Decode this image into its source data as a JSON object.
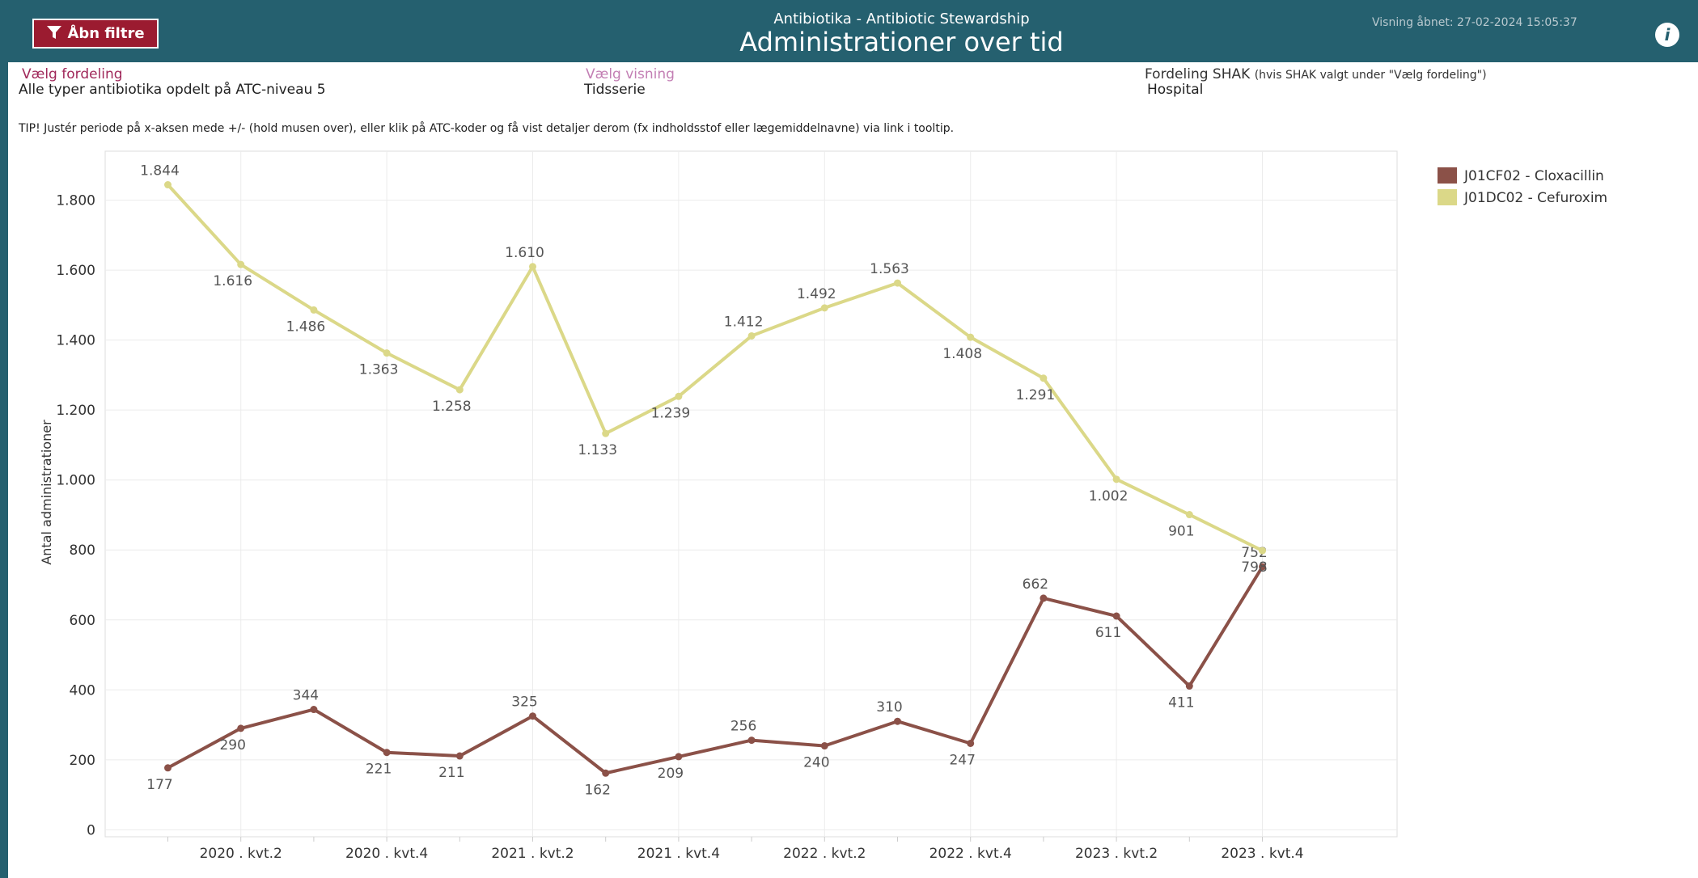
{
  "header": {
    "button": "Åbn filtre",
    "subtitle": "Antibiotika - Antibiotic Stewardship",
    "title": "Administrationer over tid",
    "opened": "Visning åbnet: 27-02-2024 15:05:37"
  },
  "filters": [
    {
      "label": "Vælg fordeling",
      "value": "Alle typer antibiotika opdelt på ATC-niveau 5"
    },
    {
      "label": "Vælg visning",
      "value": "Tidsserie"
    },
    {
      "label": "Fordeling SHAK",
      "note": "(hvis SHAK valgt under \"Vælg fordeling\")",
      "value": "Hospital"
    }
  ],
  "tip": "TIP! Justér periode på x-aksen mede +/- (hold musen over), eller klik på ATC-koder og få vist detaljer derom (fx indholdsstof eller lægemiddelnavne) via link i tooltip.",
  "chart_data": {
    "type": "line",
    "y_label": "Antal administrationer",
    "categories": [
      null,
      "2020 . kvt.2",
      null,
      "2020 . kvt.4",
      null,
      "2021 . kvt.2",
      null,
      "2021 . kvt.4",
      null,
      "2022 . kvt.2",
      null,
      "2022 . kvt.4",
      null,
      "2023 . kvt.2",
      null,
      "2023 . kvt.4"
    ],
    "series": [
      {
        "name": "J01CF02 - Cloxacillin",
        "color": "#8b5148",
        "values": [
          177,
          290,
          344,
          221,
          211,
          325,
          162,
          209,
          256,
          240,
          310,
          247,
          662,
          611,
          411,
          752
        ]
      },
      {
        "name": "J01DC02 - Cefuroxim",
        "color": "#dbd888",
        "values": [
          1844,
          1616,
          1486,
          1363,
          1258,
          1610,
          1133,
          1239,
          1412,
          1492,
          1563,
          1408,
          1291,
          1002,
          901,
          798
        ],
        "value_labels": [
          "1.844",
          "1.616",
          "1.486",
          "1.363",
          "1.258",
          "1.610",
          "1.133",
          "1.239",
          "1.412",
          "1.492",
          "1.563",
          "1.408",
          "1.291",
          "1.002",
          "901",
          "798"
        ]
      }
    ],
    "ylim": [
      -20,
      1940
    ],
    "yticks": [
      0,
      200,
      400,
      600,
      800,
      {
        "value": 1000,
        "label": "1.000"
      },
      {
        "value": 1200,
        "label": "1.200"
      },
      {
        "value": 1400,
        "label": "1.400"
      },
      {
        "value": 1600,
        "label": "1.600"
      },
      {
        "value": 1800,
        "label": "1.800"
      }
    ],
    "grid": true
  }
}
